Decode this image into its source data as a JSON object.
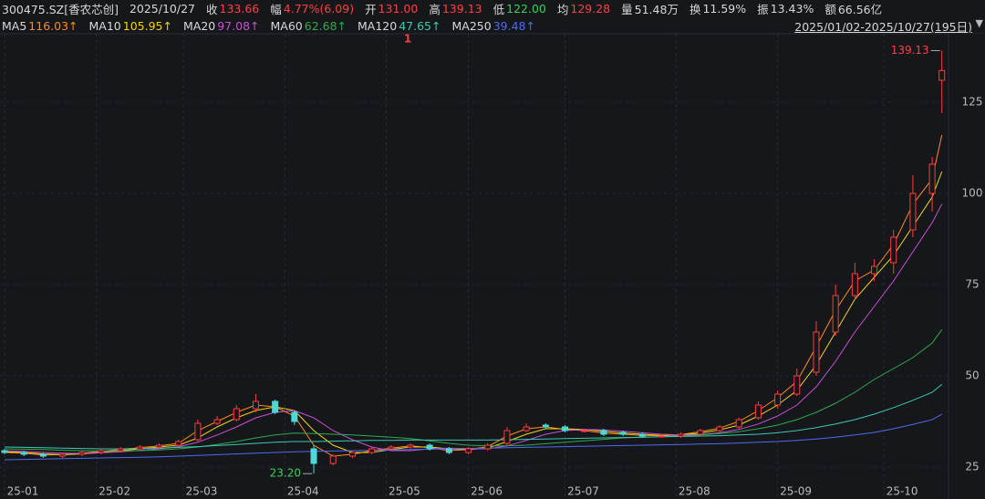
{
  "header": {
    "code": "300475.SZ[香农芯创]",
    "date": "2025/10/27",
    "quote": [
      {
        "label": "收",
        "value": "133.66",
        "color": "#ff4040"
      },
      {
        "label": "幅",
        "value": "4.77%(6.09)",
        "color": "#ff4040"
      },
      {
        "label": "开",
        "value": "131.00",
        "color": "#ff4040"
      },
      {
        "label": "高",
        "value": "139.13",
        "color": "#ff4040"
      },
      {
        "label": "低",
        "value": "122.00",
        "color": "#3ccf5c"
      },
      {
        "label": "均",
        "value": "129.28",
        "color": "#ff4040"
      },
      {
        "label": "量",
        "value": "51.48万",
        "color": "#d8d8d8"
      },
      {
        "label": "换",
        "value": "11.59%",
        "color": "#d8d8d8"
      },
      {
        "label": "振",
        "value": "13.43%",
        "color": "#d8d8d8"
      },
      {
        "label": "额",
        "value": "66.56亿",
        "color": "#d8d8d8"
      }
    ],
    "range": "2025/01/02-2025/10/27(195日)",
    "marker": "1"
  },
  "chart_data": {
    "type": "candlestick",
    "x": [
      0,
      4,
      8,
      12,
      16,
      20,
      24,
      28,
      32,
      36,
      40,
      44,
      48,
      52,
      56,
      60,
      64,
      68,
      72,
      76,
      80,
      84,
      88,
      92,
      96,
      100,
      104,
      108,
      112,
      116,
      120,
      124,
      128,
      132,
      136,
      140,
      144,
      148,
      152,
      156,
      160,
      164,
      168,
      172,
      176,
      180,
      184,
      188,
      192,
      194
    ],
    "open": [
      29.5,
      29,
      28.5,
      28,
      28.5,
      29,
      29.5,
      30,
      30.5,
      31,
      32.5,
      37,
      38,
      41,
      43,
      40,
      30,
      26,
      28,
      29,
      30,
      30.5,
      31,
      30,
      29,
      30,
      31.5,
      35,
      36.5,
      36,
      35,
      35,
      34.5,
      34,
      33.5,
      33.5,
      34,
      35,
      36,
      38.5,
      42,
      45,
      51,
      62,
      72,
      78,
      81,
      90,
      100,
      131
    ],
    "high": [
      30,
      29.5,
      29,
      29,
      29.5,
      30,
      30.5,
      31,
      31.5,
      32.5,
      38,
      39,
      42,
      45,
      43.5,
      40.5,
      31,
      28.5,
      29.5,
      30.5,
      31,
      31.5,
      31.5,
      30.5,
      30.5,
      31.5,
      36,
      37,
      37,
      36.5,
      35.5,
      35.5,
      35,
      34.5,
      34,
      34.5,
      35.5,
      36.5,
      38.5,
      43,
      46,
      52,
      65,
      75,
      81,
      82,
      90,
      105,
      110,
      139.13
    ],
    "low": [
      28.5,
      28,
      27.5,
      27.5,
      28,
      28.5,
      29,
      29.5,
      30,
      30.5,
      32,
      36.5,
      37.5,
      40,
      39.5,
      36.5,
      23.2,
      25.5,
      27.5,
      28.5,
      29.5,
      30,
      29.5,
      28.5,
      28.5,
      29.5,
      31,
      34.5,
      35.5,
      34.5,
      34.5,
      33.5,
      33.5,
      33,
      33,
      33,
      33.5,
      34.5,
      35.5,
      38,
      41,
      44.5,
      50,
      61,
      71,
      76,
      78,
      88,
      95,
      122
    ],
    "close": [
      29,
      28.5,
      28,
      28.5,
      29,
      29.5,
      30,
      30.5,
      31,
      32,
      37,
      38,
      41,
      43,
      40,
      37.5,
      26,
      28,
      29,
      30,
      30.5,
      31,
      30,
      29,
      30,
      31,
      35,
      36,
      36,
      35,
      35,
      34,
      34,
      33.5,
      33.5,
      34,
      35,
      36,
      38,
      42,
      45,
      50,
      62,
      72,
      78,
      80,
      88,
      100,
      108,
      133.66
    ],
    "up_color": "#ff3b3b",
    "down_color": "#4fd8d8",
    "series": [
      {
        "name": "MA5",
        "color": "#ff8a1e",
        "legend_value": "116.03↑",
        "values": [
          29,
          28.8,
          28.3,
          28.4,
          28.8,
          29.3,
          29.8,
          30.3,
          30.8,
          31.5,
          35,
          37.5,
          40,
          42,
          41.5,
          39,
          31,
          28,
          28.5,
          29.5,
          30.2,
          30.8,
          30.3,
          29.5,
          29.8,
          30.6,
          33.5,
          35.5,
          36,
          35.3,
          35,
          34.3,
          34,
          33.7,
          33.6,
          33.9,
          34.7,
          35.7,
          37.5,
          40.5,
          44,
          48.5,
          58,
          68,
          76,
          79,
          86,
          97,
          104,
          116.03
        ]
      },
      {
        "name": "MA10",
        "color": "#f2d21b",
        "legend_value": "105.95↑",
        "values": [
          29.2,
          29,
          28.6,
          28.4,
          28.6,
          29,
          29.5,
          30,
          30.5,
          31,
          33,
          36,
          38.5,
          40.5,
          41.5,
          40.5,
          35,
          31,
          29,
          29,
          29.8,
          30.5,
          30.5,
          30,
          29.8,
          30.2,
          32,
          34,
          35.5,
          35.5,
          35.3,
          34.8,
          34.3,
          34,
          33.7,
          33.8,
          34.3,
          35.2,
          36.5,
          39,
          42,
          46,
          53,
          62,
          71,
          77,
          83,
          91,
          99,
          105.95
        ]
      },
      {
        "name": "MA20",
        "color": "#c94fd6",
        "legend_value": "97.08↑",
        "values": [
          29.5,
          29.3,
          29,
          28.8,
          28.7,
          28.9,
          29.2,
          29.6,
          30,
          30.6,
          31.8,
          33.8,
          36,
          38.5,
          40,
          40.5,
          38.5,
          35,
          32.5,
          30.5,
          29.5,
          29.5,
          30,
          30.2,
          30,
          30,
          30.8,
          32.3,
          34,
          35,
          35.3,
          35.2,
          34.8,
          34.4,
          34,
          33.8,
          33.9,
          34.4,
          35.3,
          36.8,
          39,
          42,
          47,
          54,
          62,
          69,
          76,
          84,
          92,
          97.08
        ]
      },
      {
        "name": "MA60",
        "color": "#2faa4c",
        "legend_value": "62.68↑",
        "values": [
          30,
          29.9,
          29.8,
          29.6,
          29.5,
          29.4,
          29.4,
          29.5,
          29.7,
          30,
          30.5,
          31.2,
          32,
          33,
          33.8,
          34.3,
          34.2,
          34,
          33.8,
          33.5,
          33.2,
          32.8,
          32.2,
          31.5,
          31,
          30.8,
          30.8,
          31,
          31.4,
          31.8,
          32.2,
          32.6,
          33,
          33.2,
          33.3,
          33.5,
          33.8,
          34.2,
          34.7,
          35.5,
          36.5,
          38,
          40,
          42.5,
          45.5,
          49,
          52,
          55,
          59,
          62.68
        ]
      },
      {
        "name": "MA120",
        "color": "#3cc9b4",
        "legend_value": "47.65↑",
        "values": [
          30.5,
          30.4,
          30.3,
          30.2,
          30.1,
          30,
          30,
          30.1,
          30.2,
          30.4,
          30.6,
          30.9,
          31.2,
          31.5,
          31.8,
          32,
          32,
          32.1,
          32.2,
          32.3,
          32.3,
          32.4,
          32.4,
          32.4,
          32.4,
          32.4,
          32.5,
          32.6,
          32.7,
          32.8,
          32.9,
          33,
          33.1,
          33.2,
          33.3,
          33.4,
          33.5,
          33.6,
          33.8,
          34,
          34.4,
          35,
          35.8,
          36.8,
          38,
          39.5,
          41.3,
          43.3,
          45.5,
          47.65
        ]
      },
      {
        "name": "MA250",
        "color": "#4a6cf0",
        "legend_value": "39.48↑",
        "values": [
          27,
          27.1,
          27.2,
          27.3,
          27.4,
          27.5,
          27.6,
          27.7,
          27.8,
          28,
          28.2,
          28.4,
          28.6,
          28.8,
          29,
          29.2,
          29.3,
          29.4,
          29.5,
          29.6,
          29.7,
          29.8,
          29.9,
          30,
          30.1,
          30.2,
          30.3,
          30.4,
          30.5,
          30.6,
          30.7,
          30.8,
          30.9,
          31,
          31.1,
          31.2,
          31.3,
          31.4,
          31.6,
          31.8,
          32,
          32.3,
          32.7,
          33.2,
          33.8,
          34.5,
          35.5,
          36.7,
          38,
          39.48
        ]
      }
    ],
    "xlim": [
      0,
      195
    ],
    "xticks": [
      {
        "value": 0,
        "label": "25-01"
      },
      {
        "value": 19,
        "label": "25-02"
      },
      {
        "value": 37,
        "label": "25-03"
      },
      {
        "value": 58,
        "label": "25-04"
      },
      {
        "value": 79,
        "label": "25-05"
      },
      {
        "value": 96,
        "label": "25-06"
      },
      {
        "value": 116,
        "label": "25-07"
      },
      {
        "value": 139,
        "label": "25-08"
      },
      {
        "value": 160,
        "label": "25-09"
      },
      {
        "value": 182,
        "label": "25-10"
      }
    ],
    "ylim": [
      18.75,
      143.75
    ],
    "yticks": [
      25,
      50,
      75,
      100,
      125
    ],
    "annotations": [
      {
        "label": "139.13",
        "value": 139.13,
        "x": 194,
        "color": "#ff4040"
      },
      {
        "label": "23.20",
        "value": 23.2,
        "x": 64,
        "color": "#3ccf5c"
      }
    ]
  }
}
